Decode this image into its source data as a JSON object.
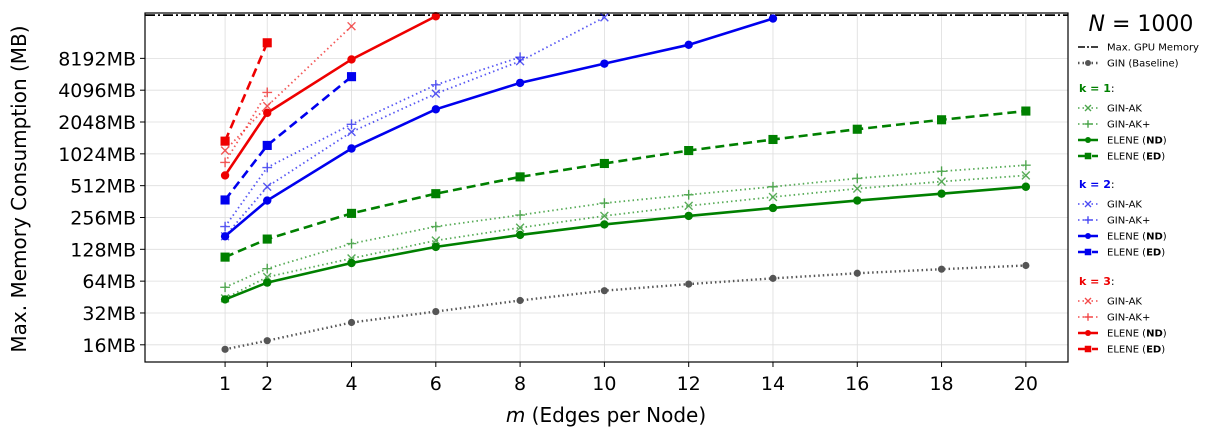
{
  "chart_data": {
    "type": "line",
    "xlabel_var": "m",
    "xlabel_rest": " (Edges per Node)",
    "ylabel": "Max. Memory Consumption (MB)",
    "y_scale": "log2",
    "ylim": [
      11,
      22000
    ],
    "xlim": [
      -0.9,
      21
    ],
    "x_ticks": [
      1,
      2,
      4,
      6,
      8,
      10,
      12,
      14,
      16,
      18,
      20
    ],
    "y_ticks": [
      16,
      32,
      64,
      128,
      256,
      512,
      1024,
      2048,
      4096,
      8192
    ],
    "y_tick_labels": [
      "16MB",
      "32MB",
      "64MB",
      "128MB",
      "256MB",
      "512MB",
      "1024MB",
      "2048MB",
      "4096MB",
      "8192MB"
    ],
    "grid": true,
    "legend_placement": "right, outside plot",
    "legend_title": {
      "var": "N",
      "rest": " = 1000"
    },
    "gpu_limit": {
      "name": "Max. GPU Memory",
      "value": 21000
    },
    "baseline": {
      "name": "GIN (Baseline)",
      "color": "#555555",
      "x": [
        1,
        2,
        4,
        6,
        8,
        10,
        12,
        14,
        16,
        18,
        20
      ],
      "y": [
        14.5,
        17.5,
        26,
        33,
        42,
        52,
        60,
        68,
        76,
        83,
        90
      ]
    },
    "groups": [
      {
        "heading_var": "k",
        "heading_rest": " = 1",
        "color": "#008000",
        "series": [
          {
            "name": "GIN-AK",
            "marker": "x",
            "style": "dotted",
            "x": [
              1,
              2,
              4,
              6,
              8,
              10,
              12,
              14,
              16,
              18,
              20
            ],
            "y": [
              44,
              70,
              105,
              155,
              205,
              265,
              330,
              400,
              480,
              560,
              640
            ]
          },
          {
            "name": "GIN-AK+",
            "marker": "+",
            "style": "dotted",
            "x": [
              1,
              2,
              4,
              6,
              8,
              10,
              12,
              14,
              16,
              18,
              20
            ],
            "y": [
              56,
              84,
              145,
              210,
              270,
              350,
              420,
              500,
              600,
              700,
              800
            ]
          },
          {
            "name_prefix": "ELENE (",
            "name_bold": "ND",
            "name_suffix": ")",
            "marker": "o",
            "style": "solid",
            "x": [
              1,
              2,
              4,
              6,
              8,
              10,
              12,
              14,
              16,
              18,
              20
            ],
            "y": [
              43,
              62,
              95,
              135,
              175,
              220,
              265,
              315,
              370,
              430,
              500
            ]
          },
          {
            "name_prefix": "ELENE (",
            "name_bold": "ED",
            "name_suffix": ")",
            "marker": "s",
            "style": "dashed",
            "x": [
              1,
              2,
              4,
              6,
              8,
              10,
              12,
              14,
              16,
              18,
              20
            ],
            "y": [
              108,
              160,
              280,
              430,
              620,
              830,
              1100,
              1400,
              1750,
              2150,
              2600
            ]
          }
        ]
      },
      {
        "heading_var": "k",
        "heading_rest": " = 2",
        "color": "#0000ee",
        "series": [
          {
            "name": "GIN-AK",
            "marker": "x",
            "style": "dotted",
            "x": [
              1,
              2,
              4,
              6,
              8,
              10
            ],
            "y": [
              170,
              500,
              1650,
              3800,
              7700,
              20000
            ]
          },
          {
            "name": "GIN-AK+",
            "marker": "+",
            "style": "dotted",
            "x": [
              1,
              2,
              4,
              6,
              8
            ],
            "y": [
              210,
              760,
              1950,
              4600,
              8400
            ]
          },
          {
            "name_prefix": "ELENE (",
            "name_bold": "ND",
            "name_suffix": ")",
            "marker": "o",
            "style": "solid",
            "x": [
              1,
              2,
              4,
              6,
              8,
              10,
              12,
              14
            ],
            "y": [
              170,
              370,
              1150,
              2700,
              4800,
              7300,
              11000,
              19500
            ]
          },
          {
            "name_prefix": "ELENE (",
            "name_bold": "ED",
            "name_suffix": ")",
            "marker": "s",
            "style": "dashed",
            "x": [
              1,
              2,
              4
            ],
            "y": [
              375,
              1230,
              5500
            ]
          }
        ]
      },
      {
        "heading_var": "k",
        "heading_rest": " = 3",
        "color": "#ee0000",
        "series": [
          {
            "name": "GIN-AK",
            "marker": "x",
            "style": "dotted",
            "x": [
              1,
              2,
              4
            ],
            "y": [
              1100,
              2900,
              16500
            ]
          },
          {
            "name": "GIN-AK+",
            "marker": "+",
            "style": "dotted",
            "x": [
              1,
              2
            ],
            "y": [
              850,
              3900
            ]
          },
          {
            "name_prefix": "ELENE (",
            "name_bold": "ND",
            "name_suffix": ")",
            "marker": "o",
            "style": "solid",
            "x": [
              1,
              2,
              4,
              6
            ],
            "y": [
              640,
              2500,
              8000,
              20500
            ]
          },
          {
            "name_prefix": "ELENE (",
            "name_bold": "ED",
            "name_suffix": ")",
            "marker": "s",
            "style": "dashed",
            "x": [
              1,
              2
            ],
            "y": [
              1350,
              11500
            ]
          }
        ]
      }
    ]
  }
}
